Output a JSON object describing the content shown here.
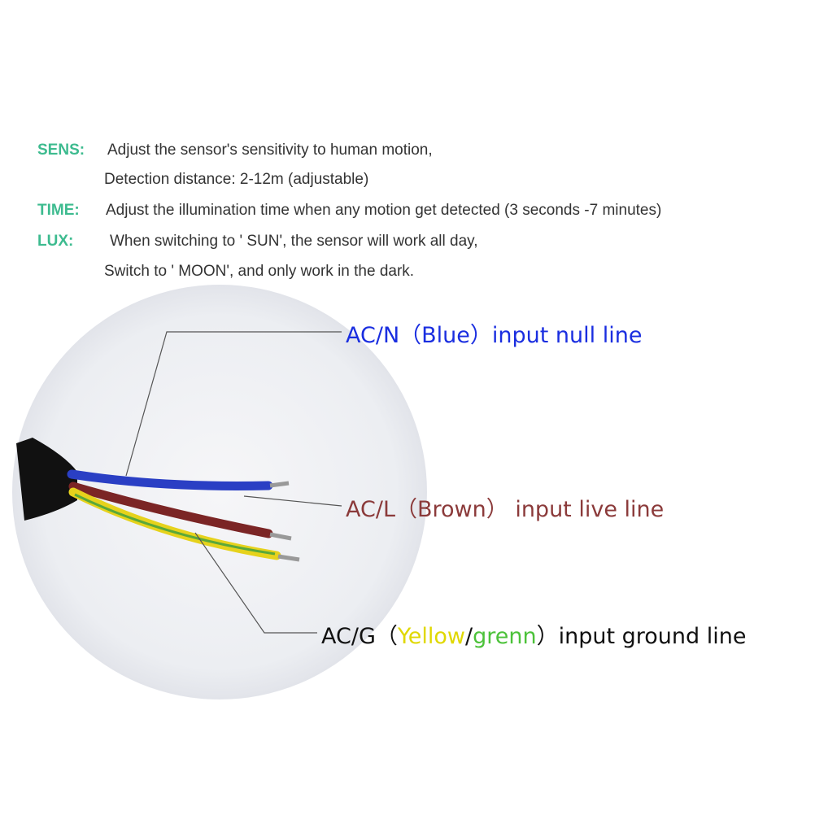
{
  "specs": {
    "sens": {
      "key": "SENS:",
      "line1": "Adjust the sensor's sensitivity to human motion,",
      "line2": "Detection distance: 2-12m (adjustable)"
    },
    "time": {
      "key": "TIME:",
      "line1": "Adjust the illumination time when any motion get detected (3 seconds -7 minutes)"
    },
    "lux": {
      "key": "LUX:",
      "line1": "When switching to ' SUN', the sensor will work all day,",
      "line2": "Switch to ' MOON', and only work in the dark."
    }
  },
  "wires": {
    "neutral": {
      "label": "AC/N（Blue）input null line",
      "color": "#1a2ee0"
    },
    "live": {
      "label": "AC/L（Brown） input live line",
      "color": "#8b3a3a"
    },
    "ground": {
      "prefix": "AC/G（",
      "yellow": "Yellow",
      "slash": "/",
      "green": "grenn",
      "suffix": "）input ground line",
      "yellow_color": "#e0d800",
      "green_color": "#4cc23a"
    }
  },
  "colors": {
    "accent": "#3dbb8f"
  }
}
